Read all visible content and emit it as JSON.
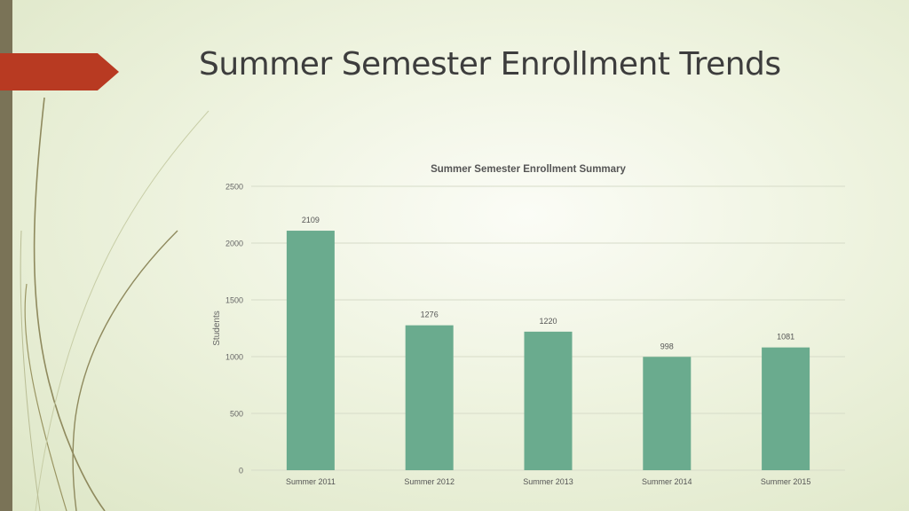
{
  "slide": {
    "title": "Summer Semester Enrollment Trends"
  },
  "theme": {
    "bar_color": "#6aab8e",
    "accent_color": "#b83a22",
    "side_bar_color": "#7a7357"
  },
  "chart_data": {
    "type": "bar",
    "title": "Summer Semester Enrollment Summary",
    "xlabel": "",
    "ylabel": "Students",
    "categories": [
      "Summer 2011",
      "Summer 2012",
      "Summer 2013",
      "Summer 2014",
      "Summer 2015"
    ],
    "series": [
      {
        "values": [
          2109,
          1276,
          1220,
          998,
          1081
        ]
      }
    ],
    "data_labels": [
      "2109",
      "1276",
      "1220",
      "998",
      "1081"
    ],
    "ylim": [
      0,
      2500
    ],
    "yticks": [
      0,
      500,
      1000,
      1500,
      2000,
      2500
    ],
    "ytick_labels": [
      "0",
      "500",
      "1000",
      "1500",
      "2000",
      "2500"
    ],
    "grid": true,
    "legend": "none"
  }
}
